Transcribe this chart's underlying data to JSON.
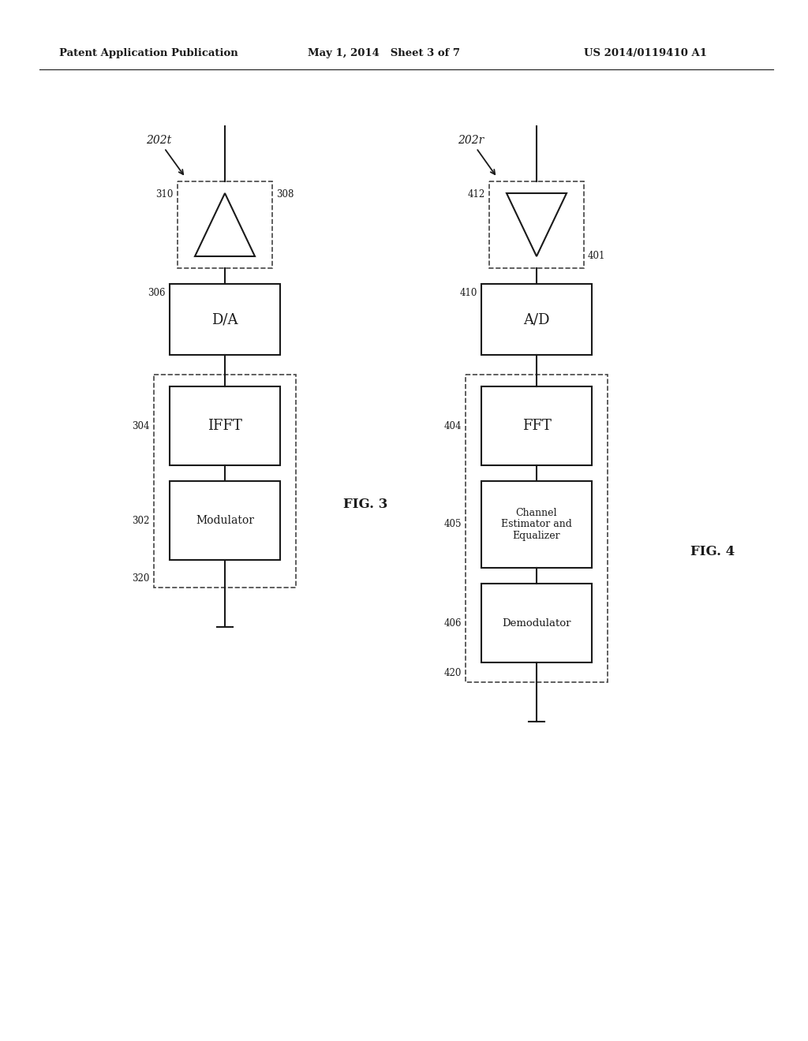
{
  "header_left": "Patent Application Publication",
  "header_mid": "May 1, 2014   Sheet 3 of 7",
  "header_right": "US 2014/0119410 A1",
  "fig3_label": "FIG. 3",
  "fig4_label": "FIG. 4",
  "bg_color": "#ffffff",
  "line_color": "#1a1a1a",
  "dashed_color": "#444444",
  "text_color": "#1a1a1a"
}
